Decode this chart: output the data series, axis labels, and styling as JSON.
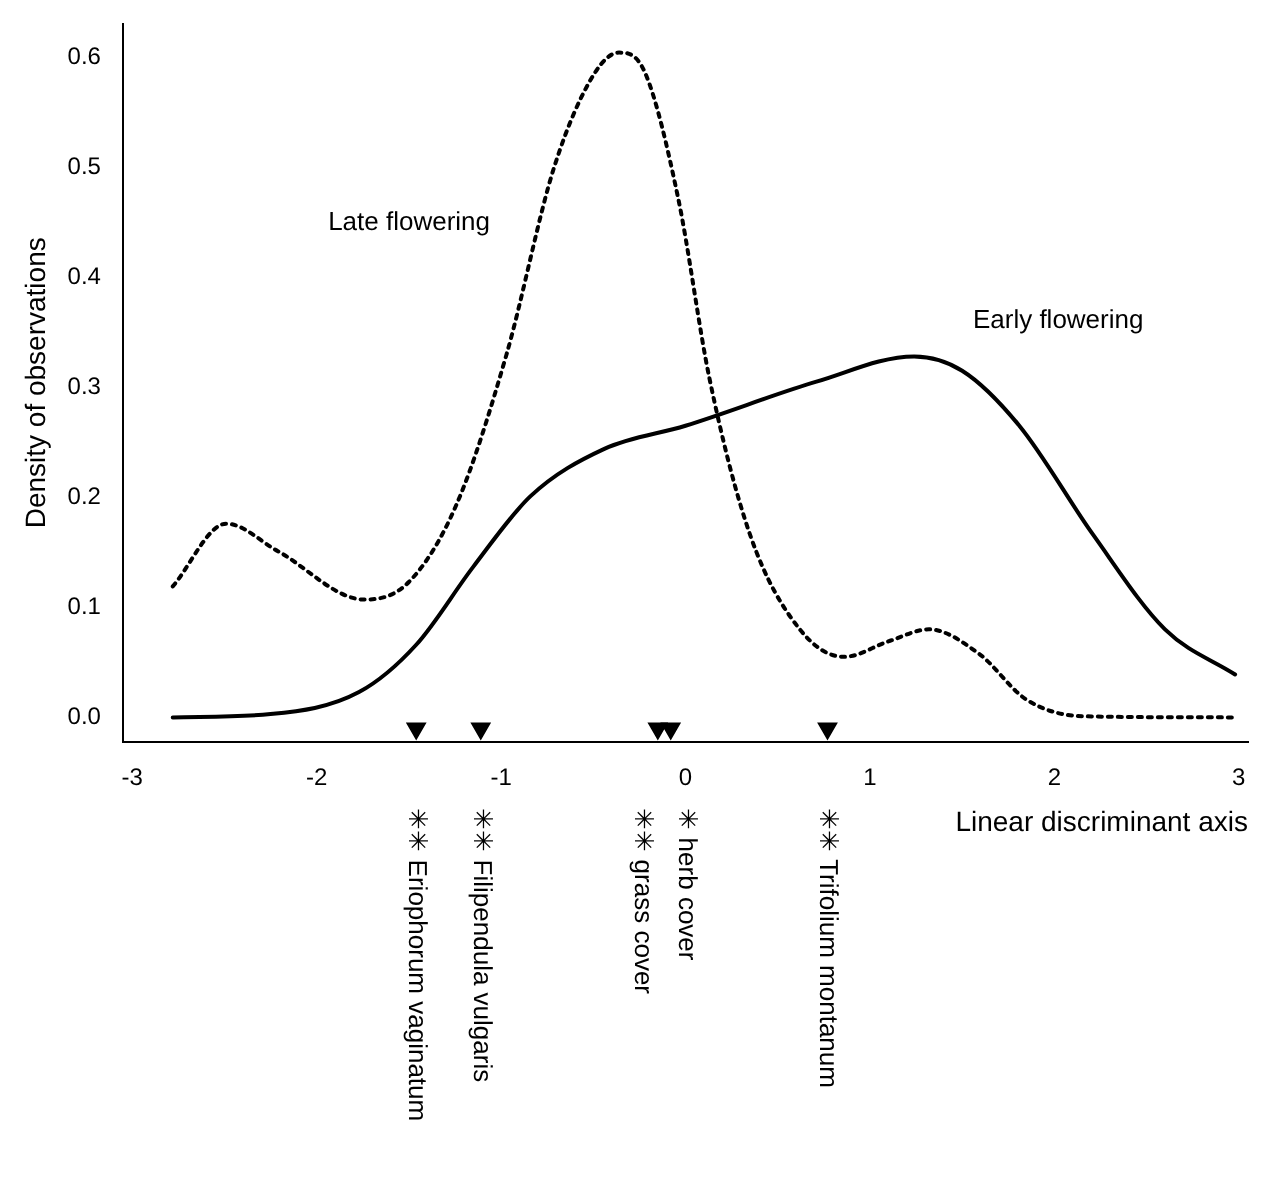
{
  "chart_data": {
    "type": "line",
    "ylabel": "Density of observations",
    "xlabel": "Linear discriminant axis",
    "xlim": [
      -3.05,
      3.05
    ],
    "xticks": [
      -3,
      -2,
      -1,
      0,
      1,
      2,
      3
    ],
    "ylim": [
      -0.022,
      0.63
    ],
    "yticks": [
      {
        "value": 0,
        "label": "0.0"
      },
      {
        "value": 0.1,
        "label": "0.1"
      },
      {
        "value": 0.2,
        "label": "0.2"
      },
      {
        "value": 0.3,
        "label": "0.3"
      },
      {
        "value": 0.4,
        "label": "0.4"
      },
      {
        "value": 0.5,
        "label": "0.5"
      },
      {
        "value": 0.6,
        "label": "0.6"
      }
    ],
    "grid": false,
    "legend": false,
    "marker": "none",
    "series": [
      {
        "name": "Late flowering",
        "color": "#000000",
        "line_style": "dotted",
        "x": [
          -2.78,
          -2.49,
          -2.21,
          -1.74,
          -1.5,
          -1.24,
          -0.97,
          -0.71,
          -0.49,
          -0.36,
          -0.22,
          -0.04,
          0.13,
          0.35,
          0.62,
          0.86,
          1.1,
          1.32,
          1.59,
          1.85,
          2.16,
          2.98
        ],
        "values": [
          0.119,
          0.176,
          0.151,
          0.107,
          0.123,
          0.194,
          0.33,
          0.501,
          0.586,
          0.604,
          0.586,
          0.472,
          0.308,
          0.166,
          0.08,
          0.055,
          0.069,
          0.08,
          0.058,
          0.016,
          0.001,
          0
        ]
      },
      {
        "name": "Early flowering",
        "color": "#000000",
        "line_style": "solid",
        "x": [
          -2.78,
          -2.25,
          -1.77,
          -1.46,
          -1.15,
          -0.84,
          -0.44,
          0,
          0.71,
          1.24,
          1.5,
          1.81,
          2.21,
          2.6,
          2.98
        ],
        "values": [
          0,
          0.003,
          0.023,
          0.066,
          0.137,
          0.201,
          0.244,
          0.265,
          0.305,
          0.328,
          0.315,
          0.265,
          0.166,
          0.08,
          0.039
        ]
      },
      {
        "type": "scatter",
        "color": "#000000",
        "marker": "triangle",
        "x": [
          -1.46,
          -1.11,
          -0.15,
          -0.08,
          0.77
        ],
        "values": [
          -0.01,
          -0.01,
          -0.01,
          -0.01,
          -0.01
        ]
      }
    ],
    "annotations": [
      "✳✳ Eriophorum vaginatum",
      "✳✳ Filipendula vulgaris",
      "✳✳ grass cover",
      "✳ herb cover",
      "✳✳ Trifolium montanum"
    ]
  }
}
